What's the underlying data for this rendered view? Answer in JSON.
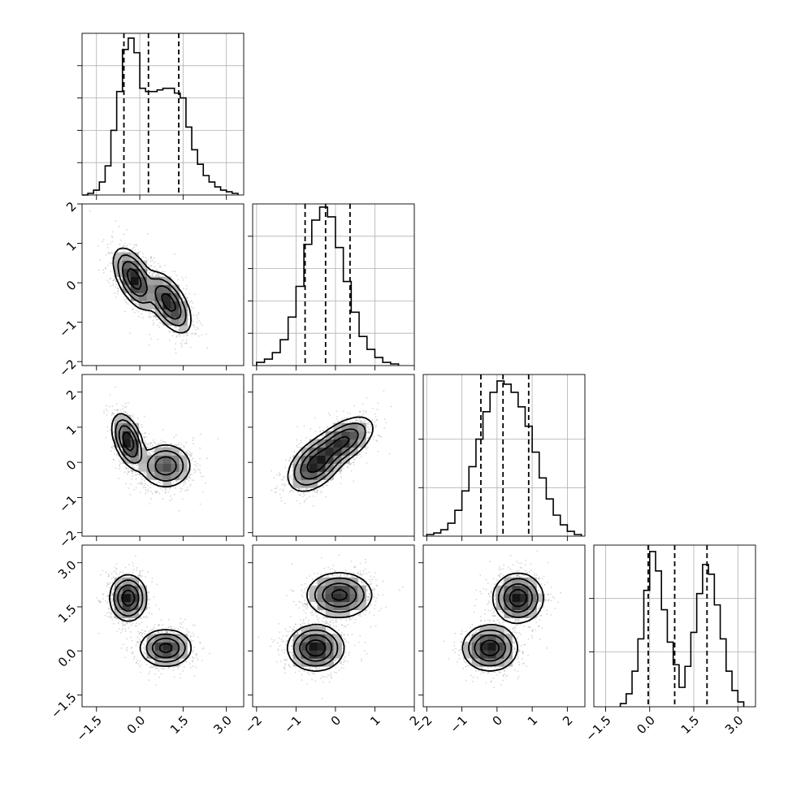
{
  "chart_data": {
    "type": "corner",
    "grid": true,
    "parameters": [
      {
        "range": [
          -2.0,
          3.6
        ],
        "ticks": [
          -1.5,
          0.0,
          1.5,
          3.0
        ],
        "tick_labels": [
          "−1.5",
          "0.0",
          "1.5",
          "3.0"
        ],
        "quantiles": [
          -0.55,
          0.3,
          1.35
        ],
        "hist_edges": [
          -2.0,
          -1.8,
          -1.6,
          -1.4,
          -1.2,
          -1.0,
          -0.8,
          -0.6,
          -0.4,
          -0.2,
          0.0,
          0.2,
          0.4,
          0.6,
          0.8,
          1.0,
          1.2,
          1.4,
          1.6,
          1.8,
          2.0,
          2.2,
          2.4,
          2.6,
          2.8,
          3.0,
          3.2,
          3.4
        ],
        "hist_counts": [
          0,
          1,
          3,
          8,
          18,
          40,
          64,
          90,
          97,
          88,
          66,
          64,
          64,
          65,
          66,
          66,
          63,
          60,
          42,
          28,
          19,
          12,
          8,
          5,
          3,
          2,
          1
        ],
        "hist_yticks": [
          20,
          40,
          60,
          80
        ],
        "hist_ymax": 100
      },
      {
        "range": [
          -2.1,
          2.0
        ],
        "ticks": [
          -2,
          -1,
          0,
          1,
          2
        ],
        "tick_labels": [
          "−2",
          "−1",
          "0",
          "1",
          "2"
        ],
        "quantiles": [
          -0.77,
          -0.25,
          0.37
        ],
        "hist_edges": [
          -2.0,
          -1.8,
          -1.6,
          -1.4,
          -1.2,
          -1.0,
          -0.8,
          -0.6,
          -0.4,
          -0.2,
          0.0,
          0.2,
          0.4,
          0.6,
          0.8,
          1.0,
          1.2,
          1.4,
          1.6
        ],
        "hist_counts": [
          2,
          4,
          8,
          16,
          30,
          49,
          75,
          90,
          98,
          92,
          73,
          52,
          33,
          18,
          10,
          5,
          2,
          1
        ],
        "hist_yticks": [
          20,
          40,
          60,
          80
        ],
        "hist_ymax": 100
      },
      {
        "range": [
          -2.1,
          2.5
        ],
        "ticks": [
          -2,
          -1,
          0,
          1,
          2
        ],
        "tick_labels": [
          "−2",
          "−1",
          "0",
          "1",
          "2"
        ],
        "quantiles": [
          -0.46,
          0.17,
          0.9
        ],
        "hist_edges": [
          -2.0,
          -1.8,
          -1.6,
          -1.4,
          -1.2,
          -1.0,
          -0.8,
          -0.6,
          -0.4,
          -0.2,
          0.0,
          0.2,
          0.4,
          0.6,
          0.8,
          1.0,
          1.2,
          1.4,
          1.6,
          1.8,
          2.0,
          2.2,
          2.4
        ],
        "hist_counts": [
          1,
          2,
          4,
          8,
          16,
          28,
          43,
          60,
          77,
          89,
          96,
          94,
          89,
          80,
          68,
          52,
          36,
          23,
          13,
          7,
          3,
          1
        ],
        "hist_yticks": [
          30,
          60
        ],
        "hist_ymax": 100
      },
      {
        "range": [
          -1.9,
          3.6
        ],
        "ticks": [
          -1.5,
          0.0,
          1.5,
          3.0
        ],
        "tick_labels": [
          "−1.5",
          "0.0",
          "1.5",
          "3.0"
        ],
        "quantiles": [
          -0.05,
          0.85,
          1.95
        ],
        "hist_edges": [
          -1.0,
          -0.8,
          -0.6,
          -0.4,
          -0.2,
          0.0,
          0.2,
          0.4,
          0.6,
          0.8,
          1.0,
          1.2,
          1.4,
          1.6,
          1.8,
          2.0,
          2.2,
          2.4,
          2.6,
          2.8,
          3.0,
          3.2
        ],
        "hist_counts": [
          2,
          8,
          22,
          42,
          72,
          96,
          84,
          60,
          40,
          26,
          12,
          25,
          46,
          70,
          88,
          82,
          63,
          42,
          22,
          10,
          3
        ],
        "hist_yticks": [
          34,
          67
        ],
        "hist_ymax": 100
      }
    ],
    "pairs": [
      {
        "row": 1,
        "col": 0,
        "modes": [
          {
            "center": [
              -0.2,
              0.1
            ],
            "cov": [
              [
                0.1,
                -0.06
              ],
              [
                -0.06,
                0.12
              ]
            ],
            "weight": 0.5
          },
          {
            "center": [
              1.0,
              -0.5
            ],
            "cov": [
              [
                0.12,
                -0.07
              ],
              [
                -0.07,
                0.12
              ]
            ],
            "weight": 0.5
          }
        ]
      },
      {
        "row": 2,
        "col": 0,
        "modes": [
          {
            "center": [
              -0.4,
              0.6
            ],
            "cov": [
              [
                0.06,
                -0.04
              ],
              [
                -0.04,
                0.12
              ]
            ],
            "weight": 0.5
          },
          {
            "center": [
              0.9,
              -0.1
            ],
            "cov": [
              [
                0.16,
                0.0
              ],
              [
                0.0,
                0.08
              ]
            ],
            "weight": 0.5
          }
        ]
      },
      {
        "row": 3,
        "col": 0,
        "modes": [
          {
            "center": [
              -0.4,
              1.8
            ],
            "cov": [
              [
                0.08,
                0.0
              ],
              [
                0.0,
                0.12
              ]
            ],
            "weight": 0.5
          },
          {
            "center": [
              0.9,
              0.1
            ],
            "cov": [
              [
                0.16,
                0.0
              ],
              [
                0.0,
                0.08
              ]
            ],
            "weight": 0.5
          }
        ]
      },
      {
        "row": 2,
        "col": 1,
        "modes": [
          {
            "center": [
              -0.5,
              -0.05
            ],
            "cov": [
              [
                0.1,
                0.05
              ],
              [
                0.05,
                0.12
              ]
            ],
            "weight": 0.55
          },
          {
            "center": [
              0.2,
              0.6
            ],
            "cov": [
              [
                0.12,
                0.06
              ],
              [
                0.06,
                0.1
              ]
            ],
            "weight": 0.45
          }
        ]
      },
      {
        "row": 3,
        "col": 1,
        "modes": [
          {
            "center": [
              -0.5,
              0.1
            ],
            "cov": [
              [
                0.1,
                0.0
              ],
              [
                0.0,
                0.12
              ]
            ],
            "weight": 0.5
          },
          {
            "center": [
              0.1,
              1.9
            ],
            "cov": [
              [
                0.14,
                0.0
              ],
              [
                0.0,
                0.12
              ]
            ],
            "weight": 0.5
          }
        ]
      },
      {
        "row": 3,
        "col": 2,
        "modes": [
          {
            "center": [
              -0.2,
              0.1
            ],
            "cov": [
              [
                0.12,
                0.0
              ],
              [
                0.0,
                0.12
              ]
            ],
            "weight": 0.5
          },
          {
            "center": [
              0.6,
              1.8
            ],
            "cov": [
              [
                0.1,
                0.0
              ],
              [
                0.0,
                0.14
              ]
            ],
            "weight": 0.5
          }
        ]
      }
    ]
  }
}
